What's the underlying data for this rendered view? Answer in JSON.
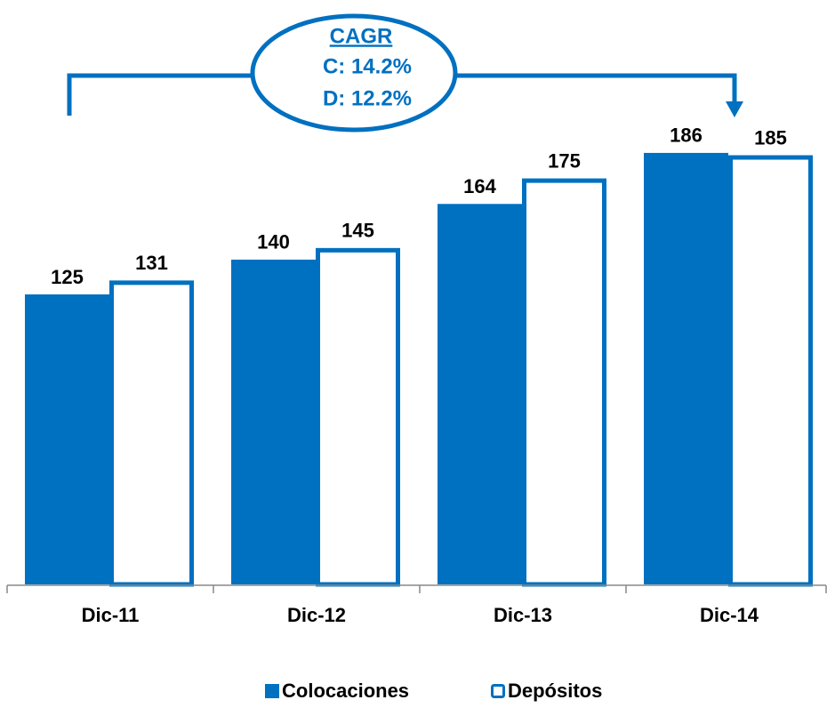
{
  "chart_data": {
    "type": "bar",
    "categories": [
      "Dic-11",
      "Dic-12",
      "Dic-13",
      "Dic-14"
    ],
    "series": [
      {
        "name": "Colocaciones",
        "color": "#0070c0",
        "values": [
          125,
          140,
          164,
          186
        ]
      },
      {
        "name": "Depósitos",
        "color": "#0070c0",
        "fill": "#ffffff",
        "values": [
          131,
          145,
          175,
          185
        ]
      }
    ],
    "ylim": [
      0,
      250
    ],
    "annotation": {
      "title": "CAGR",
      "lines": [
        "C: 14.2%",
        "D: 12.2%"
      ]
    },
    "legend": "bottom"
  }
}
